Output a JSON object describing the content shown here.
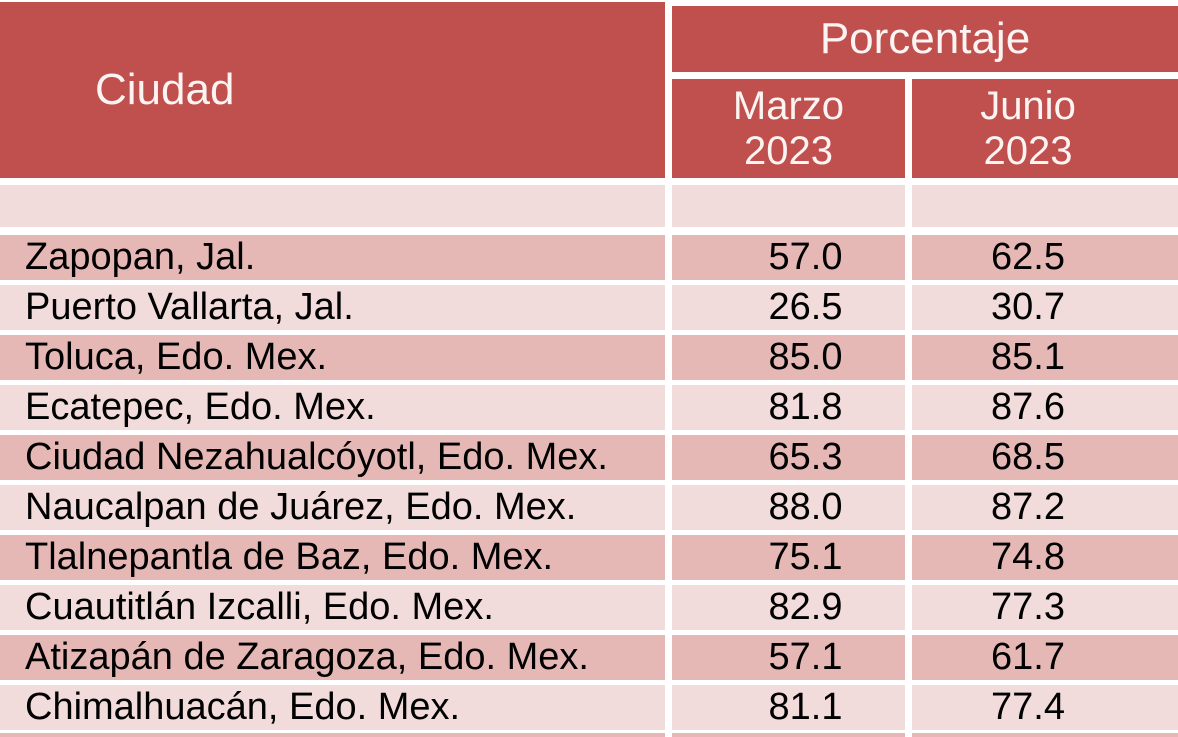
{
  "colors": {
    "header_bg": "#C0504D",
    "header_text": "#FCF4F3",
    "band_dark": "#E5B8B6",
    "band_light": "#F2DCDB",
    "body_text": "#000000",
    "grid": "#FFFFFF"
  },
  "header": {
    "city_label": "Ciudad",
    "group_label": "Porcentaje",
    "columns": [
      {
        "line1": "Marzo",
        "line2": "2023"
      },
      {
        "line1": "Junio",
        "line2": "2023"
      }
    ]
  },
  "rows": [
    {
      "city": "Zapopan, Jal.",
      "marzo": "57.0",
      "junio": "62.5"
    },
    {
      "city": "Puerto Vallarta, Jal.",
      "marzo": "26.5",
      "junio": "30.7"
    },
    {
      "city": "Toluca, Edo. Mex.",
      "marzo": "85.0",
      "junio": "85.1"
    },
    {
      "city": "Ecatepec, Edo. Mex.",
      "marzo": "81.8",
      "junio": "87.6"
    },
    {
      "city": "Ciudad Nezahualcóyotl, Edo. Mex.",
      "marzo": "65.3",
      "junio": "68.5"
    },
    {
      "city": "Naucalpan de Juárez, Edo. Mex.",
      "marzo": "88.0",
      "junio": "87.2"
    },
    {
      "city": "Tlalnepantla de Baz, Edo. Mex.",
      "marzo": "75.1",
      "junio": "74.8"
    },
    {
      "city": "Cuautitlán Izcalli, Edo. Mex.",
      "marzo": "82.9",
      "junio": "77.3"
    },
    {
      "city": "Atizapán de Zaragoza, Edo. Mex.",
      "marzo": "57.1",
      "junio": "61.7"
    },
    {
      "city": "Chimalhuacán, Edo. Mex.",
      "marzo": "81.1",
      "junio": "77.4"
    }
  ],
  "chart_data": {
    "type": "table",
    "columns": [
      "Ciudad",
      "Porcentaje Marzo 2023",
      "Porcentaje Junio 2023"
    ],
    "rows": [
      [
        "Zapopan, Jal.",
        57.0,
        62.5
      ],
      [
        "Puerto Vallarta, Jal.",
        26.5,
        30.7
      ],
      [
        "Toluca, Edo. Mex.",
        85.0,
        85.1
      ],
      [
        "Ecatepec, Edo. Mex.",
        81.8,
        87.6
      ],
      [
        "Ciudad Nezahualcóyotl, Edo. Mex.",
        65.3,
        68.5
      ],
      [
        "Naucalpan de Juárez, Edo. Mex.",
        88.0,
        87.2
      ],
      [
        "Tlalnepantla de Baz, Edo. Mex.",
        75.1,
        74.8
      ],
      [
        "Cuautitlán Izcalli, Edo. Mex.",
        82.9,
        77.3
      ],
      [
        "Atizapán de Zaragoza, Edo. Mex.",
        57.1,
        61.7
      ],
      [
        "Chimalhuacán, Edo. Mex.",
        81.1,
        77.4
      ]
    ]
  }
}
